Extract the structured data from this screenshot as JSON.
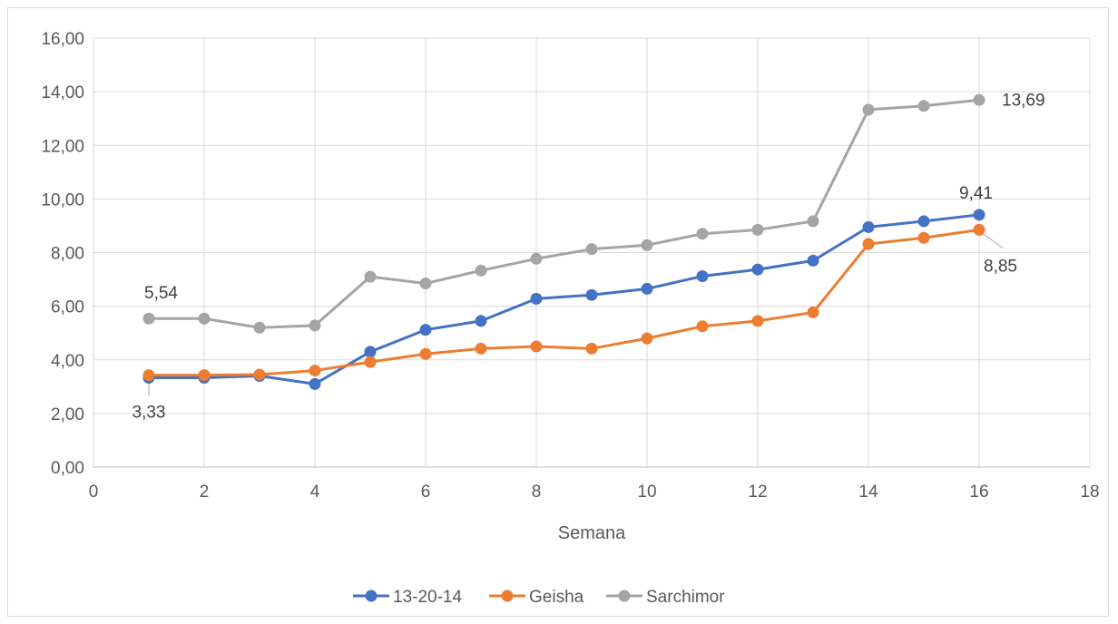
{
  "chart_data": {
    "type": "scatter",
    "title": "",
    "xlabel": "Semana",
    "ylabel": "",
    "xlim": [
      0,
      18
    ],
    "ylim": [
      0,
      16
    ],
    "x_ticks": [
      "0",
      "2",
      "4",
      "6",
      "8",
      "10",
      "12",
      "14",
      "16",
      "18"
    ],
    "y_ticks": [
      "0,00",
      "2,00",
      "4,00",
      "6,00",
      "8,00",
      "10,00",
      "12,00",
      "14,00",
      "16,00"
    ],
    "grid": true,
    "legend_position": "bottom",
    "x": [
      1,
      2,
      3,
      4,
      5,
      6,
      7,
      8,
      9,
      10,
      11,
      12,
      13,
      14,
      15,
      16
    ],
    "series": [
      {
        "name": "13-20-14",
        "color": "#4472C4",
        "values": [
          3.33,
          3.33,
          3.4,
          3.1,
          4.3,
          5.12,
          5.45,
          6.28,
          6.42,
          6.65,
          7.12,
          7.37,
          7.7,
          8.95,
          9.17,
          9.41
        ]
      },
      {
        "name": "Geisha",
        "color": "#ED7D31",
        "values": [
          3.43,
          3.43,
          3.45,
          3.6,
          3.92,
          4.22,
          4.42,
          4.5,
          4.42,
          4.8,
          5.25,
          5.45,
          5.77,
          8.32,
          8.55,
          8.85
        ]
      },
      {
        "name": "Sarchimor",
        "color": "#A5A5A5",
        "values": [
          5.54,
          5.54,
          5.2,
          5.28,
          7.1,
          6.85,
          7.33,
          7.77,
          8.13,
          8.28,
          8.7,
          8.85,
          9.17,
          13.33,
          13.47,
          13.69
        ]
      }
    ],
    "data_labels": [
      {
        "text": "5,54",
        "series": 2,
        "point": 0
      },
      {
        "text": "3,33",
        "series": 0,
        "point": 0
      },
      {
        "text": "13,69",
        "series": 2,
        "point": 15
      },
      {
        "text": "9,41",
        "series": 0,
        "point": 15
      },
      {
        "text": "8,85",
        "series": 1,
        "point": 15
      }
    ]
  }
}
